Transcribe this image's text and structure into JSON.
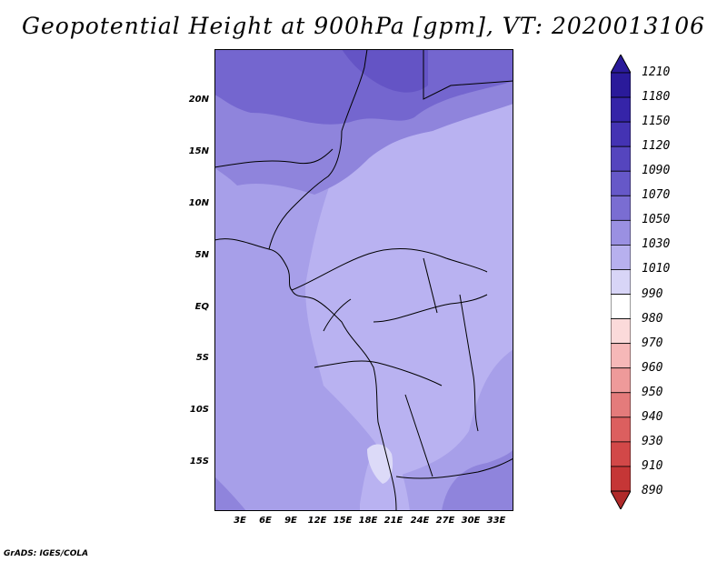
{
  "title": "Geopotential Height at 900hPa [gpm], VT: 2020013106",
  "map": {
    "lat_labels": [
      "20N",
      "15N",
      "10N",
      "5N",
      "EQ",
      "5S",
      "10S",
      "15S"
    ],
    "lon_labels": [
      "3E",
      "6E",
      "9E",
      "12E",
      "15E",
      "18E",
      "21E",
      "24E",
      "27E",
      "30E",
      "33E"
    ]
  },
  "colorbar": {
    "levels": [
      "1210",
      "1180",
      "1150",
      "1120",
      "1090",
      "1070",
      "1050",
      "1030",
      "1010",
      "990",
      "980",
      "970",
      "960",
      "950",
      "940",
      "930",
      "910",
      "890"
    ],
    "colors": [
      "#2a1a9a",
      "#3524a8",
      "#4433b3",
      "#5545be",
      "#6658c8",
      "#7a6dd2",
      "#9a90e2",
      "#b7b0ee",
      "#d8d5f7",
      "#ffffff",
      "#fbdada",
      "#f6b8b8",
      "#ee9a9a",
      "#e47b7b",
      "#dc5f5f",
      "#d24848",
      "#c53636",
      "#b02a2a"
    ]
  },
  "credit": "GrADS: IGES/COLA"
}
